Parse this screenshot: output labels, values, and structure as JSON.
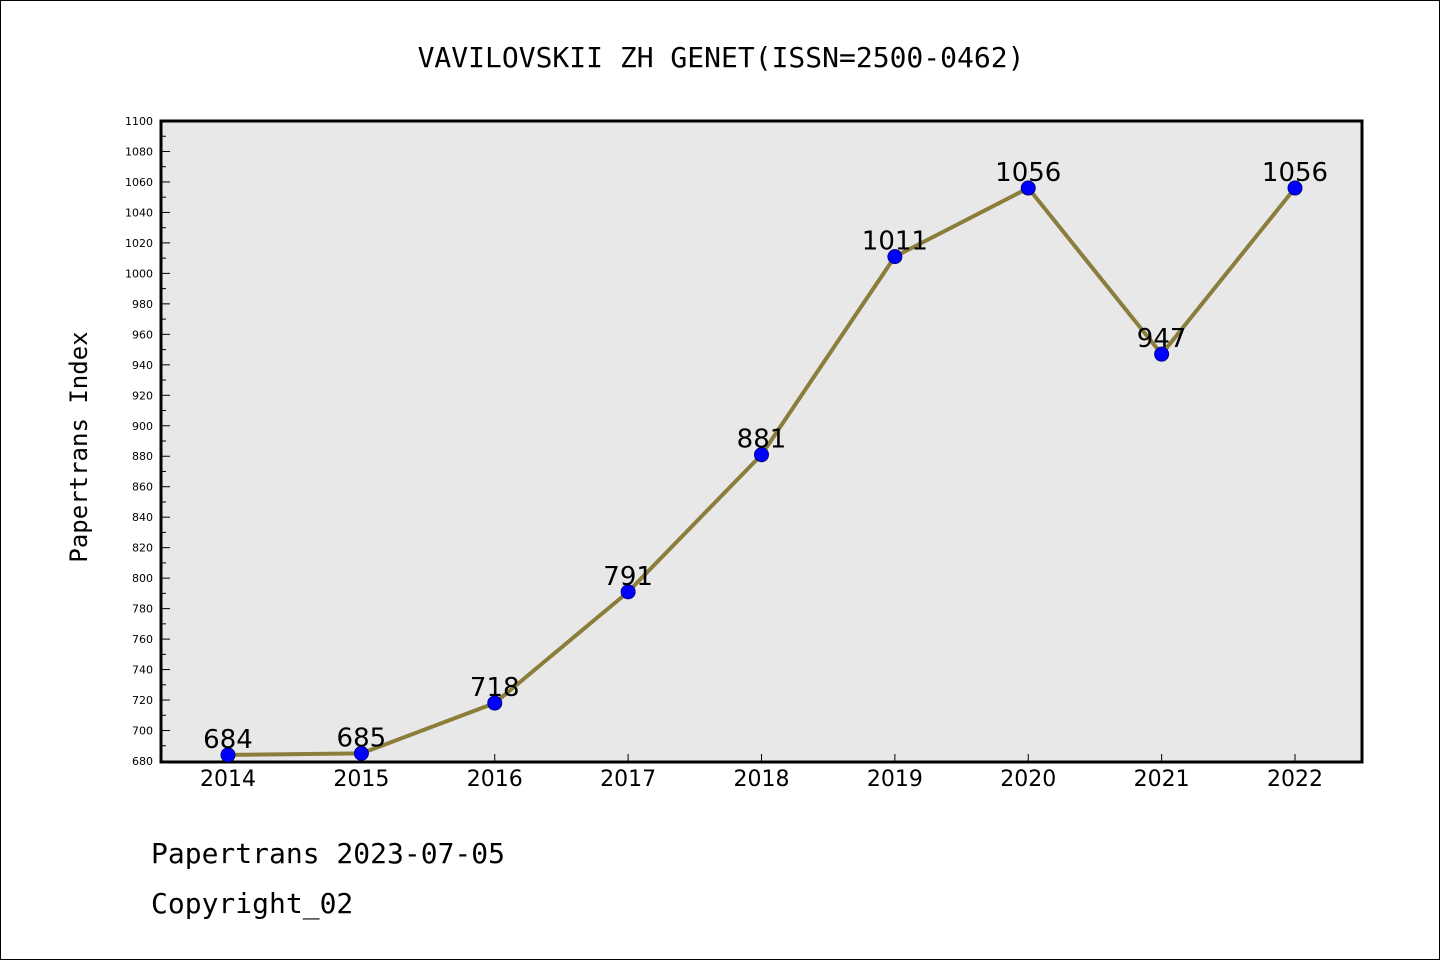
{
  "chart_data": {
    "type": "line",
    "title": "VAVILOVSKII ZH GENET(ISSN=2500-0462)",
    "xlabel": "",
    "ylabel": "Papertrans Index",
    "categories": [
      "2014",
      "2015",
      "2016",
      "2017",
      "2018",
      "2019",
      "2020",
      "2021",
      "2022"
    ],
    "series": [
      {
        "values": [
          684,
          685,
          718,
          791,
          881,
          1011,
          1056,
          947,
          1056
        ],
        "data_labels": [
          "684",
          "685",
          "718",
          "791",
          "881",
          "1011",
          "1056",
          "947",
          "1056"
        ]
      }
    ],
    "ylim": [
      680,
      1100
    ],
    "y_ticks": [
      "680",
      "700",
      "720",
      "740",
      "760",
      "780",
      "800",
      "820",
      "840",
      "860",
      "880",
      "900",
      "920",
      "940",
      "960",
      "980",
      "1000",
      "1020",
      "1040",
      "1060",
      "1080",
      "1100"
    ],
    "grid": false,
    "legend": "none",
    "colors": {
      "line": "#8b7d3a",
      "marker": "#0000ff",
      "plot_background": "#e8e8e8"
    }
  },
  "footer": {
    "line1": "Papertrans 2023-07-05",
    "line2": "Copyright_02"
  }
}
